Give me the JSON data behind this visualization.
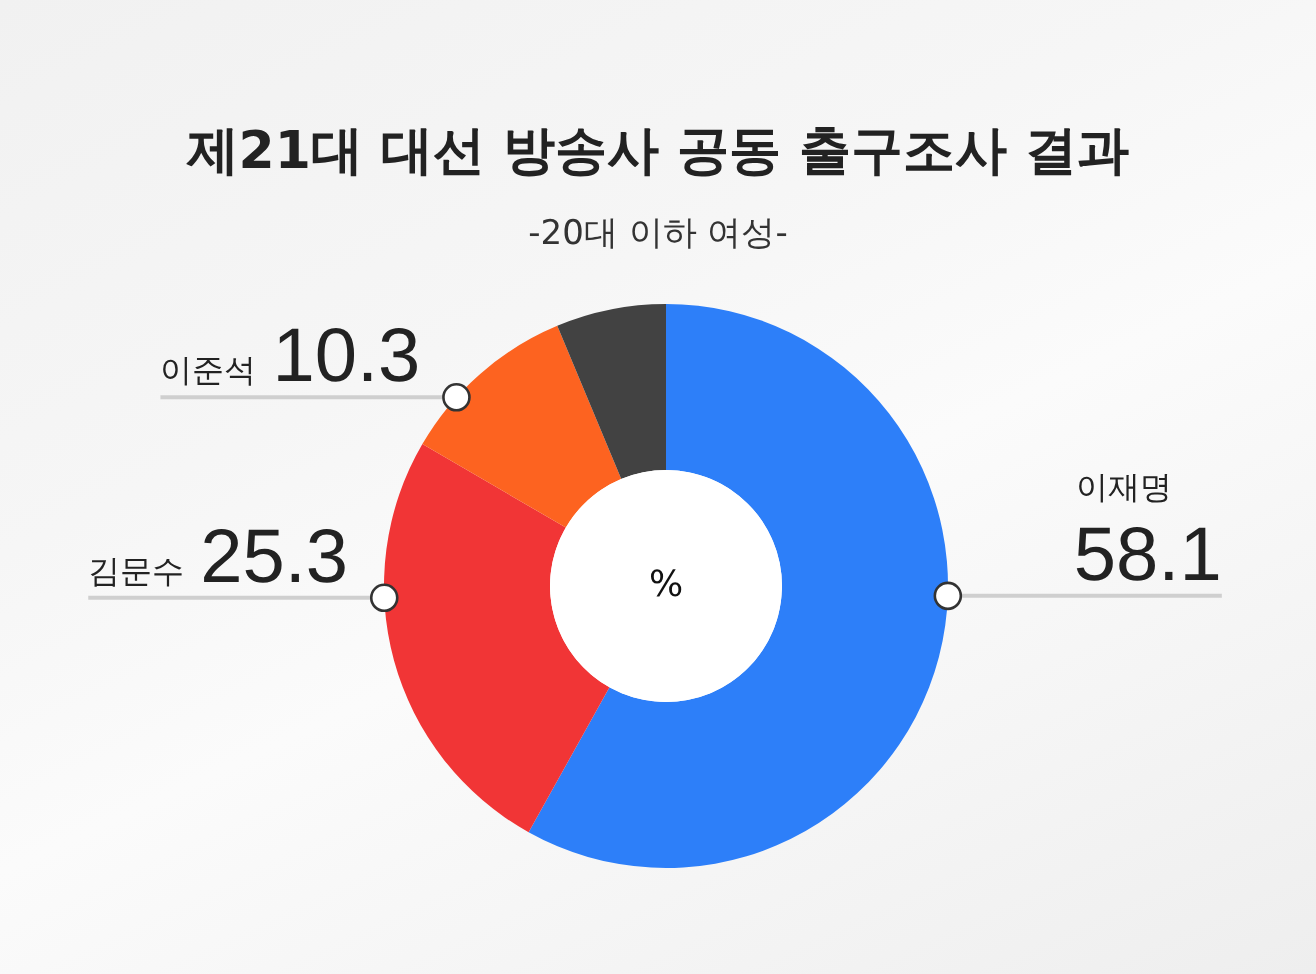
{
  "chart_data": {
    "type": "donut",
    "title": "제21대 대선 방송사 공동 출구조사 결과",
    "subtitle": "-20대 이하 여성-",
    "categories": [
      "이재명",
      "김문수",
      "이준석",
      null
    ],
    "values": [
      58.1,
      25.3,
      10.3,
      6.3
    ],
    "colors": [
      "#2d7ff9",
      "#f13536",
      "#fd6320",
      "#424242"
    ],
    "value_labels": [
      "58.1",
      "25.3",
      "10.3",
      null
    ],
    "annotations": [
      "%"
    ]
  }
}
